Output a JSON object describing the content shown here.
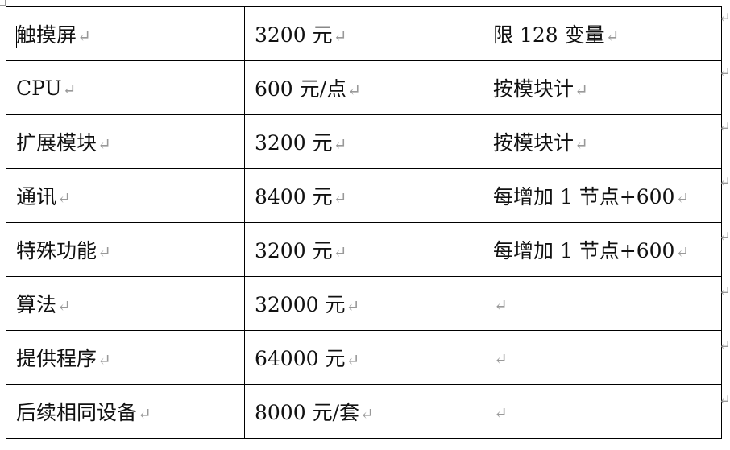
{
  "table": {
    "rows": [
      [
        "触摸屏",
        "3200 元",
        "限 128 变量"
      ],
      [
        "CPU",
        "600 元/点",
        "按模块计"
      ],
      [
        "扩展模块",
        "3200 元",
        "按模块计"
      ],
      [
        "通讯",
        "8400 元",
        "每增加 1 节点+600"
      ],
      [
        "特殊功能",
        "3200 元",
        "每增加 1 节点+600"
      ],
      [
        "算法",
        "32000 元",
        ""
      ],
      [
        "提供程序",
        "64000 元",
        ""
      ],
      [
        "后续相同设备",
        "8000 元/套",
        ""
      ]
    ]
  },
  "paragraph_mark": "↵"
}
